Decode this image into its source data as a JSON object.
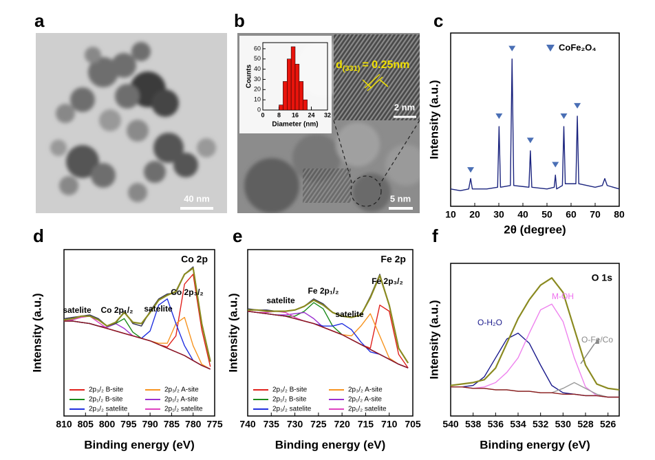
{
  "panel_labels": [
    "a",
    "b",
    "c",
    "d",
    "e",
    "f"
  ],
  "tem_a": {
    "scale_bar": "40 nm"
  },
  "tem_b": {
    "scale_bar": "5 nm",
    "inset_scale_bar": "2 nm",
    "d_symbol": "d",
    "d_index": "(331)",
    "d_value": "= 0.25nm"
  },
  "chart_data": [
    {
      "type": "histogram",
      "xlabel": "Diameter (nm)",
      "ylabel": "Counts",
      "color": "#e8140c",
      "bins": [
        8,
        10,
        12,
        14,
        16,
        18,
        20,
        22
      ],
      "counts": [
        5,
        28,
        50,
        62,
        45,
        28,
        10
      ],
      "xlim": [
        0,
        32
      ],
      "xticks": [
        0,
        8,
        16,
        24,
        32
      ],
      "ylim": [
        0,
        66
      ],
      "yticks": [
        0,
        10,
        20,
        30,
        40,
        50,
        60
      ]
    },
    {
      "type": "line",
      "xlabel": "2θ (degree)",
      "ylabel": "Intensity (a.u.)",
      "legend": "CoFe₂O₄",
      "legend_corner": "top-right",
      "xlim": [
        10,
        80
      ],
      "xticks": [
        10,
        20,
        30,
        40,
        50,
        60,
        70,
        80
      ],
      "ylim": [
        0,
        100
      ],
      "x": [
        10,
        14,
        17.5,
        18.3,
        19,
        25,
        29.5,
        30.1,
        30.7,
        34.8,
        35.5,
        36.2,
        42.5,
        43.1,
        43.7,
        50,
        53,
        53.5,
        54,
        56.4,
        57,
        57.6,
        62,
        62.6,
        63.2,
        70,
        73,
        74,
        75,
        80
      ],
      "series": [
        {
          "color": "#1a237e",
          "values": [
            10,
            9,
            10,
            16,
            10,
            10,
            11,
            46,
            11,
            12,
            85,
            12,
            11,
            32,
            11,
            10,
            11,
            18,
            10,
            12,
            46,
            13,
            13,
            52,
            13,
            11,
            12,
            16,
            12,
            10
          ]
        }
      ],
      "markers": {
        "color": "#4a6fb5",
        "x": [
          18.3,
          30.1,
          35.5,
          43.1,
          53.5,
          57,
          62.6
        ],
        "values": [
          21,
          52,
          91,
          38,
          24,
          52,
          58
        ]
      }
    },
    {
      "type": "line",
      "xlabel": "Binding energy (eV)",
      "ylabel": "Intensity (a.u.)",
      "xlim": [
        810,
        775
      ],
      "xticks": [
        810,
        805,
        800,
        795,
        790,
        785,
        780,
        775
      ],
      "ylim": [
        -35,
        100
      ],
      "annotations": [
        "Co 2p",
        "satelite",
        "Co 2p₁/₂",
        "satelite",
        "Co 2p₃/₂"
      ],
      "x": [
        810,
        808,
        806,
        804,
        802,
        800,
        798,
        796,
        794,
        792,
        790,
        788,
        786,
        784,
        782,
        780,
        778,
        776
      ],
      "series": [
        {
          "name": "2p₃/₂ B-site",
          "color": "#e0201b",
          "values": [
            42,
            42,
            41,
            40,
            38,
            36,
            34,
            32,
            30,
            28,
            26,
            23,
            21,
            30,
            72,
            80,
            35,
            5
          ]
        },
        {
          "name": "2p₃/₂ A-site",
          "color": "#f7931e",
          "values": [
            42,
            42,
            41,
            40,
            38,
            36,
            34,
            32,
            30,
            28,
            26,
            24,
            24,
            40,
            45,
            22,
            7,
            3
          ]
        },
        {
          "name": "2p₁/₂ B-site",
          "color": "#1a8a1a",
          "values": [
            42,
            42,
            41,
            40,
            38,
            37,
            40,
            44,
            33,
            28,
            26,
            23,
            20,
            17,
            14,
            10,
            6,
            3
          ]
        },
        {
          "name": "2p₁/₂ A-site",
          "color": "#9b30d0",
          "values": [
            42,
            42,
            41,
            40,
            38,
            37,
            40,
            36,
            30,
            28,
            26,
            23,
            20,
            17,
            14,
            10,
            6,
            3
          ]
        },
        {
          "name": "2p₃/₂ satelite",
          "color": "#1f2ee0",
          "values": [
            42,
            42,
            41,
            40,
            38,
            36,
            34,
            32,
            30,
            28,
            34,
            55,
            60,
            40,
            22,
            10,
            6,
            3
          ]
        },
        {
          "name": "2p₁/₂ satelite",
          "color": "#e040c0",
          "values": [
            42,
            43,
            45,
            46,
            41,
            36,
            34,
            32,
            30,
            28,
            26,
            23,
            20,
            17,
            14,
            10,
            6,
            3
          ]
        },
        {
          "color": "#8b1a1a",
          "values": [
            42,
            42,
            41,
            40,
            38,
            36,
            34,
            32,
            30,
            28,
            26,
            23,
            20,
            17,
            14,
            10,
            6,
            3
          ]
        },
        {
          "color": "#333355",
          "values": [
            44,
            45,
            46,
            47,
            44,
            38,
            40,
            50,
            40,
            38,
            50,
            60,
            64,
            65,
            80,
            86,
            40,
            10
          ]
        },
        {
          "color": "#8a8a20",
          "values": [
            43,
            44,
            46,
            46,
            43,
            38,
            41,
            49,
            41,
            40,
            49,
            59,
            63,
            66,
            80,
            85,
            40,
            9
          ]
        }
      ]
    },
    {
      "type": "line",
      "xlabel": "Binding energy (eV)",
      "ylabel": "Intensity (a.u.)",
      "xlim": [
        740,
        705
      ],
      "xticks": [
        740,
        735,
        730,
        725,
        720,
        715,
        710,
        705
      ],
      "ylim": [
        -35,
        100
      ],
      "annotations": [
        "Fe 2p",
        "satelite",
        "Fe 2p₁/₂",
        "satelite",
        "Fe 2p₃/₂"
      ],
      "x": [
        740,
        738,
        736,
        734,
        732,
        730,
        728,
        726,
        724,
        722,
        720,
        718,
        716,
        714,
        712,
        710,
        708,
        706
      ],
      "series": [
        {
          "name": "2p₃/₂ B-site",
          "color": "#e0201b",
          "values": [
            50,
            49,
            48,
            47,
            46,
            44,
            42,
            40,
            37,
            34,
            31,
            27,
            23,
            20,
            55,
            50,
            15,
            4
          ]
        },
        {
          "name": "2p₃/₂ A-site",
          "color": "#f7931e",
          "values": [
            50,
            49,
            48,
            47,
            46,
            44,
            42,
            40,
            37,
            34,
            31,
            30,
            38,
            48,
            30,
            12,
            7,
            4
          ]
        },
        {
          "name": "2p₁/₂ B-site",
          "color": "#1a8a1a",
          "values": [
            50,
            49,
            48,
            47,
            46,
            46,
            50,
            57,
            52,
            38,
            31,
            27,
            23,
            19,
            15,
            11,
            7,
            4
          ]
        },
        {
          "name": "2p₁/₂ A-site",
          "color": "#9b30d0",
          "values": [
            50,
            49,
            48,
            47,
            47,
            48,
            49,
            44,
            37,
            34,
            31,
            27,
            23,
            19,
            15,
            11,
            7,
            4
          ]
        },
        {
          "name": "2p₃/₂ satelite",
          "color": "#1f2ee0",
          "values": [
            50,
            49,
            48,
            47,
            46,
            44,
            42,
            40,
            38,
            38,
            40,
            35,
            25,
            17,
            15,
            11,
            7,
            4
          ]
        },
        {
          "name": "2p₁/₂ satelite",
          "color": "#e040c0",
          "values": [
            50,
            49,
            49,
            50,
            49,
            45,
            42,
            40,
            37,
            34,
            31,
            27,
            23,
            19,
            15,
            11,
            7,
            4
          ]
        },
        {
          "color": "#8b1a1a",
          "values": [
            50,
            49,
            48,
            47,
            46,
            44,
            42,
            40,
            37,
            34,
            31,
            27,
            23,
            19,
            15,
            11,
            7,
            4
          ]
        },
        {
          "color": "#333355",
          "values": [
            52,
            51,
            51,
            50,
            50,
            51,
            54,
            60,
            56,
            49,
            46,
            45,
            47,
            62,
            80,
            55,
            20,
            8
          ]
        },
        {
          "color": "#8a8a20",
          "values": [
            51,
            51,
            50,
            50,
            50,
            51,
            54,
            59,
            55,
            49,
            46,
            45,
            47,
            61,
            79,
            55,
            20,
            8
          ]
        }
      ]
    },
    {
      "type": "line",
      "xlabel": "Binding energy (eV)",
      "ylabel": "Intensity (a.u.)",
      "xlim": [
        540,
        525
      ],
      "xticks": [
        540,
        538,
        536,
        534,
        532,
        530,
        528,
        526
      ],
      "ylim": [
        -5,
        100
      ],
      "annotations": [
        "O 1s",
        "O-H₂O",
        "M-OH",
        "O-Fe/Co"
      ],
      "annotation_colors": [
        "#000000",
        "#1a1a8c",
        "#ee70ee",
        "#888888"
      ],
      "x": [
        540,
        539,
        538,
        537,
        536,
        535,
        534,
        533,
        532,
        531,
        530,
        529,
        528,
        527,
        526,
        525
      ],
      "series": [
        {
          "color": "#1a1a8c",
          "values": [
            15,
            15,
            16,
            22,
            35,
            48,
            52,
            45,
            30,
            16,
            11,
            10,
            9,
            9,
            8,
            8
          ]
        },
        {
          "color": "#ee82ee",
          "values": [
            15,
            15,
            14,
            15,
            18,
            25,
            35,
            52,
            68,
            72,
            60,
            35,
            15,
            9,
            8,
            8
          ]
        },
        {
          "color": "#999999",
          "values": [
            15,
            15,
            14,
            14,
            13,
            13,
            12,
            12,
            11,
            11,
            14,
            18,
            14,
            10,
            8,
            8
          ]
        },
        {
          "color": "#8b1a1a",
          "values": [
            15,
            15,
            14,
            14,
            13,
            13,
            12,
            12,
            11,
            11,
            10,
            10,
            9,
            9,
            8,
            8
          ]
        },
        {
          "color": "#8a8a20",
          "values": [
            16,
            17,
            18,
            20,
            28,
            45,
            62,
            75,
            85,
            90,
            80,
            55,
            30,
            17,
            14,
            13
          ]
        }
      ]
    }
  ]
}
